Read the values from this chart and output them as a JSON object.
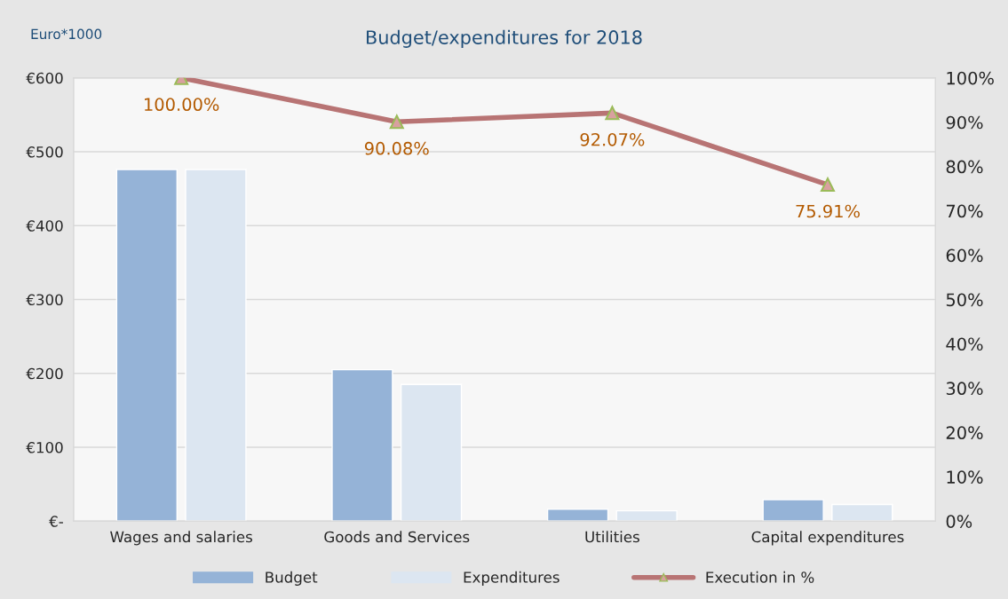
{
  "chart_data": {
    "type": "bar",
    "title": "Budget/expenditures for 2018",
    "annotations": [
      "Euro*1000"
    ],
    "categories": [
      "Wages and salaries",
      "Goods and Services",
      "Utilities",
      "Capital expenditures"
    ],
    "series": [
      {
        "name": "Budget",
        "color": "#95b3d7",
        "values": [
          476,
          205,
          16,
          29
        ]
      },
      {
        "name": "Expenditures",
        "color": "#dce6f1",
        "values": [
          476,
          185,
          14,
          22.5
        ]
      },
      {
        "name": "Execution in %",
        "type": "line",
        "axis": "y2",
        "color": "#b87474",
        "marker": "triangle",
        "values": [
          100.0,
          90.08,
          92.07,
          75.91
        ],
        "value_labels": [
          "100.00%",
          "90.08%",
          "92.07%",
          "75.91%"
        ]
      }
    ],
    "ylim": [
      0,
      600
    ],
    "yticks": [
      {
        "value": 0,
        "label": "€-"
      },
      {
        "value": 100,
        "label": "€100"
      },
      {
        "value": 200,
        "label": "€200"
      },
      {
        "value": 300,
        "label": "€300"
      },
      {
        "value": 400,
        "label": "€400"
      },
      {
        "value": 500,
        "label": "€500"
      },
      {
        "value": 600,
        "label": "€600"
      }
    ],
    "y2lim": [
      0,
      100
    ],
    "y2ticks": [
      {
        "value": 0,
        "label": "0%"
      },
      {
        "value": 10,
        "label": "10%"
      },
      {
        "value": 20,
        "label": "20%"
      },
      {
        "value": 30,
        "label": "30%"
      },
      {
        "value": 40,
        "label": "40%"
      },
      {
        "value": 50,
        "label": "50%"
      },
      {
        "value": 60,
        "label": "60%"
      },
      {
        "value": 70,
        "label": "70%"
      },
      {
        "value": 80,
        "label": "80%"
      },
      {
        "value": 90,
        "label": "90%"
      },
      {
        "value": 100,
        "label": "100%"
      }
    ],
    "grid": "y",
    "legend": "bottom"
  }
}
